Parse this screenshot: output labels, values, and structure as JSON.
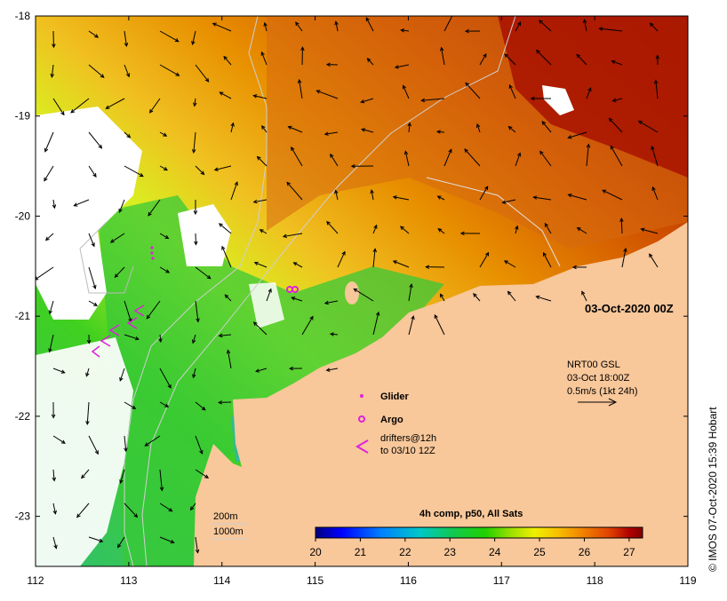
{
  "map": {
    "title": "03-Oct-2020 00Z",
    "credit": "© IMOS 07-Oct-2020 15:39 Hobart",
    "lon_ticks": [
      "112",
      "113",
      "114",
      "115",
      "116",
      "117",
      "118",
      "119"
    ],
    "lat_ticks": [
      "-18",
      "-19",
      "-20",
      "-21",
      "-22",
      "-23"
    ],
    "lon_range": [
      112,
      119
    ],
    "lat_range": [
      -23.5,
      -18
    ],
    "colors": {
      "land": "#f8c79a",
      "cloud": "#ffffff",
      "glider": "#e020e0",
      "argo": "#e020e0",
      "drifter": "#e020e0",
      "isobath": "#cfcfcf",
      "arrow": "#000000"
    }
  },
  "legend": {
    "glider_label": "Glider",
    "argo_label": "Argo",
    "drifters_line1": "drifters@12h",
    "drifters_line2": "to 03/10 12Z"
  },
  "current_key": {
    "line1": "NRT00 GSL",
    "line2": "03-Oct 18:00Z",
    "line3": "0.5m/s (1kt 24h)"
  },
  "isobath_key": {
    "shallow": "200m",
    "deep": "1000m"
  },
  "colorbar": {
    "title": "4h comp, p50, All Sats",
    "ticks": [
      "20",
      "21",
      "22",
      "23",
      "24",
      "25",
      "26",
      "27"
    ],
    "range": [
      20,
      27.3
    ],
    "stops": [
      "#00007f",
      "#0000ff",
      "#0080ff",
      "#00c8c8",
      "#10c850",
      "#20d000",
      "#a0e000",
      "#f0f000",
      "#f8c000",
      "#f08000",
      "#e04000",
      "#b00000",
      "#800000"
    ]
  }
}
